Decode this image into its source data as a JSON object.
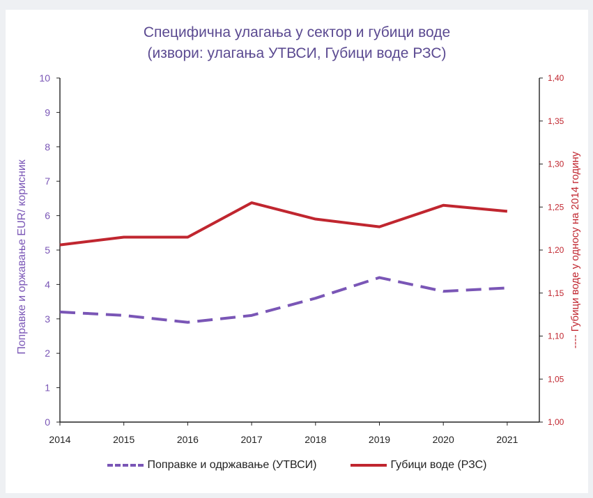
{
  "chart_data": {
    "type": "line",
    "title": "Специфична улагања у сектор и губици воде",
    "subtitle": "(извори: улагања УТВСИ, Губици воде РЗС)",
    "x": [
      "2014",
      "2015",
      "2016",
      "2017",
      "2018",
      "2019",
      "2020",
      "2021"
    ],
    "ylabel_left": "Поправке и оржавање  EUR/ корисник",
    "ylabel_right": "---- Губици воде у односу на 2014 годину",
    "ylim_left": [
      0,
      10
    ],
    "ylim_right": [
      1.0,
      1.4
    ],
    "yticks_left": [
      "0",
      "1",
      "2",
      "3",
      "4",
      "5",
      "6",
      "7",
      "8",
      "9",
      "10"
    ],
    "yticks_right": [
      "1,00",
      "1,05",
      "1,10",
      "1,15",
      "1,20",
      "1,25",
      "1,30",
      "1,35",
      "1,40"
    ],
    "series": [
      {
        "name": "Поправке и одржавање (УТВСИ)",
        "axis": "left",
        "style": "dashed",
        "color": "#7a56b6",
        "values": [
          3.2,
          3.1,
          2.9,
          3.1,
          3.6,
          4.2,
          3.8,
          3.9
        ]
      },
      {
        "name": "Губици воде (РЗС)",
        "axis": "right",
        "style": "solid",
        "color": "#c0262f",
        "values": [
          1.206,
          1.215,
          1.215,
          1.255,
          1.236,
          1.227,
          1.252,
          1.245
        ]
      }
    ],
    "grid": false,
    "legend": "bottom"
  }
}
